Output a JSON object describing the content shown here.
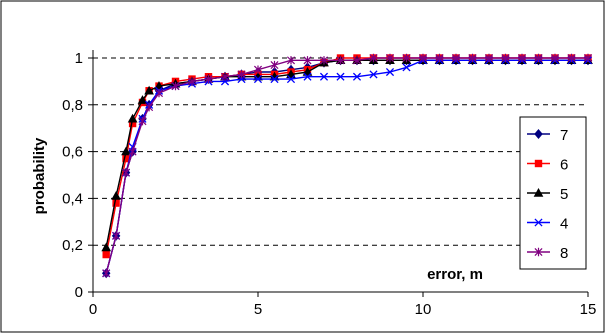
{
  "chart_data": {
    "type": "line",
    "xlabel": "error, m",
    "ylabel": "probability",
    "xlim": [
      0,
      15
    ],
    "ylim": [
      0,
      1
    ],
    "x_ticks": [
      "0",
      "5",
      "10",
      "15"
    ],
    "x_tick_values": [
      0,
      5,
      10,
      15
    ],
    "y_ticks": [
      "0",
      "0,2",
      "0,4",
      "0,6",
      "0,8",
      "1"
    ],
    "y_tick_values": [
      0,
      0.2,
      0.4,
      0.6,
      0.8,
      1.0
    ],
    "grid": "horizontal dashed",
    "legend_position": "right",
    "series": [
      {
        "name": "7",
        "color": "#000080",
        "marker": "diamond",
        "x": [
          0.4,
          0.7,
          1.0,
          1.2,
          1.5,
          1.7,
          2.0,
          2.5,
          3.0,
          3.5,
          4.0,
          4.5,
          5.0,
          5.5,
          6.0,
          6.5,
          7.0,
          7.5,
          8.0,
          8.5,
          9.0,
          9.5,
          10.0,
          10.5,
          11.0,
          11.5,
          12.0,
          12.5,
          13.0,
          13.5,
          14.0,
          14.5,
          15.0
        ],
        "y": [
          0.08,
          0.24,
          0.51,
          0.6,
          0.74,
          0.8,
          0.86,
          0.89,
          0.9,
          0.91,
          0.92,
          0.93,
          0.94,
          0.94,
          0.95,
          0.96,
          0.98,
          0.99,
          0.99,
          0.99,
          0.99,
          0.99,
          0.99,
          0.99,
          0.99,
          0.99,
          0.99,
          0.99,
          0.99,
          0.99,
          0.99,
          0.99,
          0.99
        ]
      },
      {
        "name": "6",
        "color": "#ff0000",
        "marker": "square",
        "x": [
          0.4,
          0.7,
          1.0,
          1.2,
          1.5,
          1.7,
          2.0,
          2.5,
          3.0,
          3.5,
          4.0,
          4.5,
          5.0,
          5.5,
          6.0,
          6.5,
          7.0,
          7.5,
          8.0,
          8.5,
          9.0,
          9.5,
          10.0,
          10.5,
          11.0,
          11.5,
          12.0,
          12.5,
          13.0,
          13.5,
          14.0,
          14.5,
          15.0
        ],
        "y": [
          0.16,
          0.38,
          0.57,
          0.72,
          0.81,
          0.86,
          0.88,
          0.9,
          0.91,
          0.92,
          0.92,
          0.93,
          0.93,
          0.93,
          0.94,
          0.95,
          0.98,
          1.0,
          1.0,
          1.0,
          1.0,
          1.0,
          1.0,
          1.0,
          1.0,
          1.0,
          1.0,
          1.0,
          1.0,
          1.0,
          1.0,
          1.0,
          1.0
        ]
      },
      {
        "name": "5",
        "color": "#000000",
        "marker": "triangle",
        "x": [
          0.4,
          0.7,
          1.0,
          1.2,
          1.5,
          1.7,
          2.0,
          2.5,
          3.0,
          3.5,
          4.0,
          4.5,
          5.0,
          5.5,
          6.0,
          6.5,
          7.0,
          7.5,
          8.0,
          8.5,
          9.0,
          9.5,
          10.0,
          10.5,
          11.0,
          11.5,
          12.0,
          12.5,
          13.0,
          13.5,
          14.0,
          14.5,
          15.0
        ],
        "y": [
          0.19,
          0.41,
          0.6,
          0.74,
          0.82,
          0.86,
          0.88,
          0.89,
          0.9,
          0.91,
          0.92,
          0.92,
          0.92,
          0.92,
          0.93,
          0.94,
          0.98,
          0.99,
          0.99,
          0.99,
          0.99,
          0.99,
          0.99,
          0.99,
          0.99,
          0.99,
          0.99,
          0.99,
          0.99,
          0.99,
          0.99,
          0.99,
          0.99
        ]
      },
      {
        "name": "4",
        "color": "#0000ff",
        "marker": "x",
        "x": [
          0.4,
          0.7,
          1.0,
          1.2,
          1.5,
          1.7,
          2.0,
          2.5,
          3.0,
          3.5,
          4.0,
          4.5,
          5.0,
          5.5,
          6.0,
          6.5,
          7.0,
          7.5,
          8.0,
          8.5,
          9.0,
          9.5,
          10.0,
          10.5,
          11.0,
          11.5,
          12.0,
          12.5,
          13.0,
          13.5,
          14.0,
          14.5,
          15.0
        ],
        "y": [
          0.08,
          0.24,
          0.51,
          0.62,
          0.74,
          0.8,
          0.86,
          0.88,
          0.89,
          0.9,
          0.9,
          0.91,
          0.91,
          0.91,
          0.91,
          0.92,
          0.92,
          0.92,
          0.92,
          0.93,
          0.94,
          0.96,
          0.99,
          0.99,
          0.99,
          0.99,
          0.99,
          0.99,
          0.99,
          0.99,
          0.99,
          0.99,
          0.99
        ]
      },
      {
        "name": "8",
        "color": "#800080",
        "marker": "star",
        "x": [
          0.4,
          0.7,
          1.0,
          1.2,
          1.5,
          1.7,
          2.0,
          2.5,
          3.0,
          3.5,
          4.0,
          4.5,
          5.0,
          5.5,
          6.0,
          6.5,
          7.0,
          7.5,
          8.0,
          8.5,
          9.0,
          9.5,
          10.0,
          10.5,
          11.0,
          11.5,
          12.0,
          12.5,
          13.0,
          13.5,
          14.0,
          14.5,
          15.0
        ],
        "y": [
          0.08,
          0.24,
          0.51,
          0.6,
          0.73,
          0.79,
          0.85,
          0.88,
          0.9,
          0.91,
          0.92,
          0.93,
          0.95,
          0.97,
          0.99,
          0.99,
          0.99,
          0.99,
          0.99,
          1.0,
          1.0,
          1.0,
          1.0,
          1.0,
          1.0,
          1.0,
          1.0,
          1.0,
          1.0,
          1.0,
          1.0,
          1.0,
          1.0
        ]
      }
    ]
  }
}
